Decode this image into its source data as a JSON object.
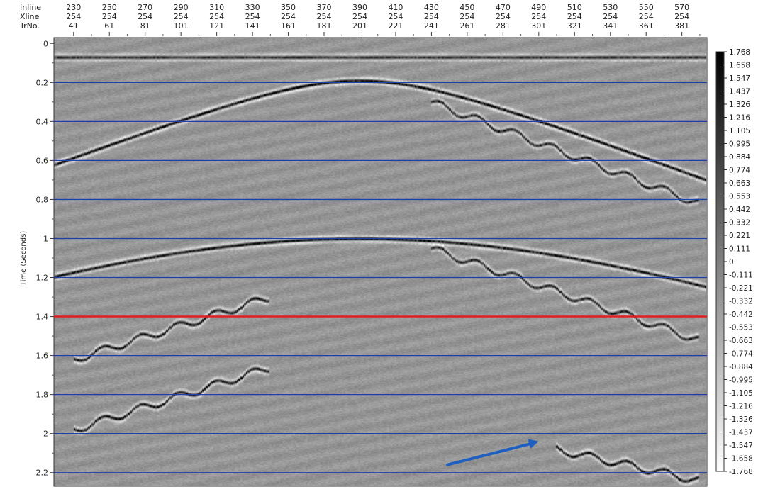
{
  "chart_data": {
    "type": "heatmap",
    "header_labels": [
      "Inline",
      "Xline",
      "TrNo."
    ],
    "traces": [
      {
        "inline": "230",
        "xline": "254",
        "trno": "41"
      },
      {
        "inline": "250",
        "xline": "254",
        "trno": "61"
      },
      {
        "inline": "270",
        "xline": "254",
        "trno": "81"
      },
      {
        "inline": "290",
        "xline": "254",
        "trno": "101"
      },
      {
        "inline": "310",
        "xline": "254",
        "trno": "121"
      },
      {
        "inline": "330",
        "xline": "254",
        "trno": "141"
      },
      {
        "inline": "350",
        "xline": "254",
        "trno": "161"
      },
      {
        "inline": "370",
        "xline": "254",
        "trno": "181"
      },
      {
        "inline": "390",
        "xline": "254",
        "trno": "201"
      },
      {
        "inline": "410",
        "xline": "254",
        "trno": "221"
      },
      {
        "inline": "430",
        "xline": "254",
        "trno": "241"
      },
      {
        "inline": "450",
        "xline": "254",
        "trno": "261"
      },
      {
        "inline": "470",
        "xline": "254",
        "trno": "281"
      },
      {
        "inline": "490",
        "xline": "254",
        "trno": "301"
      },
      {
        "inline": "510",
        "xline": "254",
        "trno": "321"
      },
      {
        "inline": "530",
        "xline": "254",
        "trno": "341"
      },
      {
        "inline": "550",
        "xline": "254",
        "trno": "361"
      },
      {
        "inline": "570",
        "xline": "254",
        "trno": "381"
      }
    ],
    "trno_range": [
      30,
      395
    ],
    "ylabel": "Time (Seconds)",
    "y_ticks": [
      "0",
      "0.2",
      "0.4",
      "0.6",
      "0.8",
      "1",
      "1.2",
      "1.4",
      "1.6",
      "1.8",
      "2",
      "2.2"
    ],
    "ylim": [
      -0.03,
      2.27
    ],
    "horizontal_lines": [
      0.2,
      0.4,
      0.6,
      0.8,
      1.0,
      1.2,
      1.6,
      1.8,
      2.0,
      2.2
    ],
    "highlight_line": 1.4,
    "line_color": "#1f3fa8",
    "highlight_color": "#e02020",
    "arrow": {
      "from_trno": 250,
      "from_time": 2.16,
      "to_trno": 301,
      "to_time": 2.04,
      "color": "#1f5fbf"
    },
    "colorbar": {
      "labels": [
        "1.768",
        "1.658",
        "1.547",
        "1.437",
        "1.326",
        "1.216",
        "1.105",
        "0.995",
        "0.884",
        "0.774",
        "0.663",
        "0.553",
        "0.442",
        "0.332",
        "0.221",
        "0.111",
        "0",
        "-0.111",
        "-0.221",
        "-0.332",
        "-0.442",
        "-0.553",
        "-0.663",
        "-0.774",
        "-0.884",
        "-0.995",
        "-1.105",
        "-1.216",
        "-1.326",
        "-1.437",
        "-1.547",
        "-1.658",
        "-1.768"
      ],
      "max_color": "#000000",
      "min_color": "#ffffff"
    },
    "events": [
      {
        "name": "direct-arrival",
        "type": "band",
        "time": 0.07,
        "strength": 0.7
      },
      {
        "name": "diffraction-hyperbola-upper",
        "type": "hyperbola",
        "apex_trno": 201,
        "apex_time": 0.19,
        "velocity": 720,
        "strength": 1.0
      },
      {
        "name": "diffraction-hyperbola-lower",
        "type": "hyperbola",
        "apex_trno": 201,
        "apex_time": 1.0,
        "velocity": 650,
        "strength": 0.9
      },
      {
        "name": "dipping-events-left",
        "type": "dip",
        "start_trno": 41,
        "end_trno": 151,
        "start_time": 1.62,
        "end_time": 1.3,
        "strength": 0.9
      },
      {
        "name": "dipping-events-left-deep",
        "type": "dip",
        "start_trno": 41,
        "end_trno": 151,
        "start_time": 1.98,
        "end_time": 1.66,
        "strength": 0.9
      },
      {
        "name": "staircase-events-right",
        "type": "dip",
        "start_trno": 241,
        "end_trno": 391,
        "start_time": 0.3,
        "end_time": 0.82,
        "strength": 0.8
      },
      {
        "name": "staircase-events-right-deep",
        "type": "dip",
        "start_trno": 241,
        "end_trno": 391,
        "start_time": 1.05,
        "end_time": 1.52,
        "strength": 0.8
      },
      {
        "name": "deep-events-right",
        "type": "dip",
        "start_trno": 311,
        "end_trno": 391,
        "start_time": 2.08,
        "end_time": 2.24,
        "strength": 0.9
      }
    ]
  }
}
